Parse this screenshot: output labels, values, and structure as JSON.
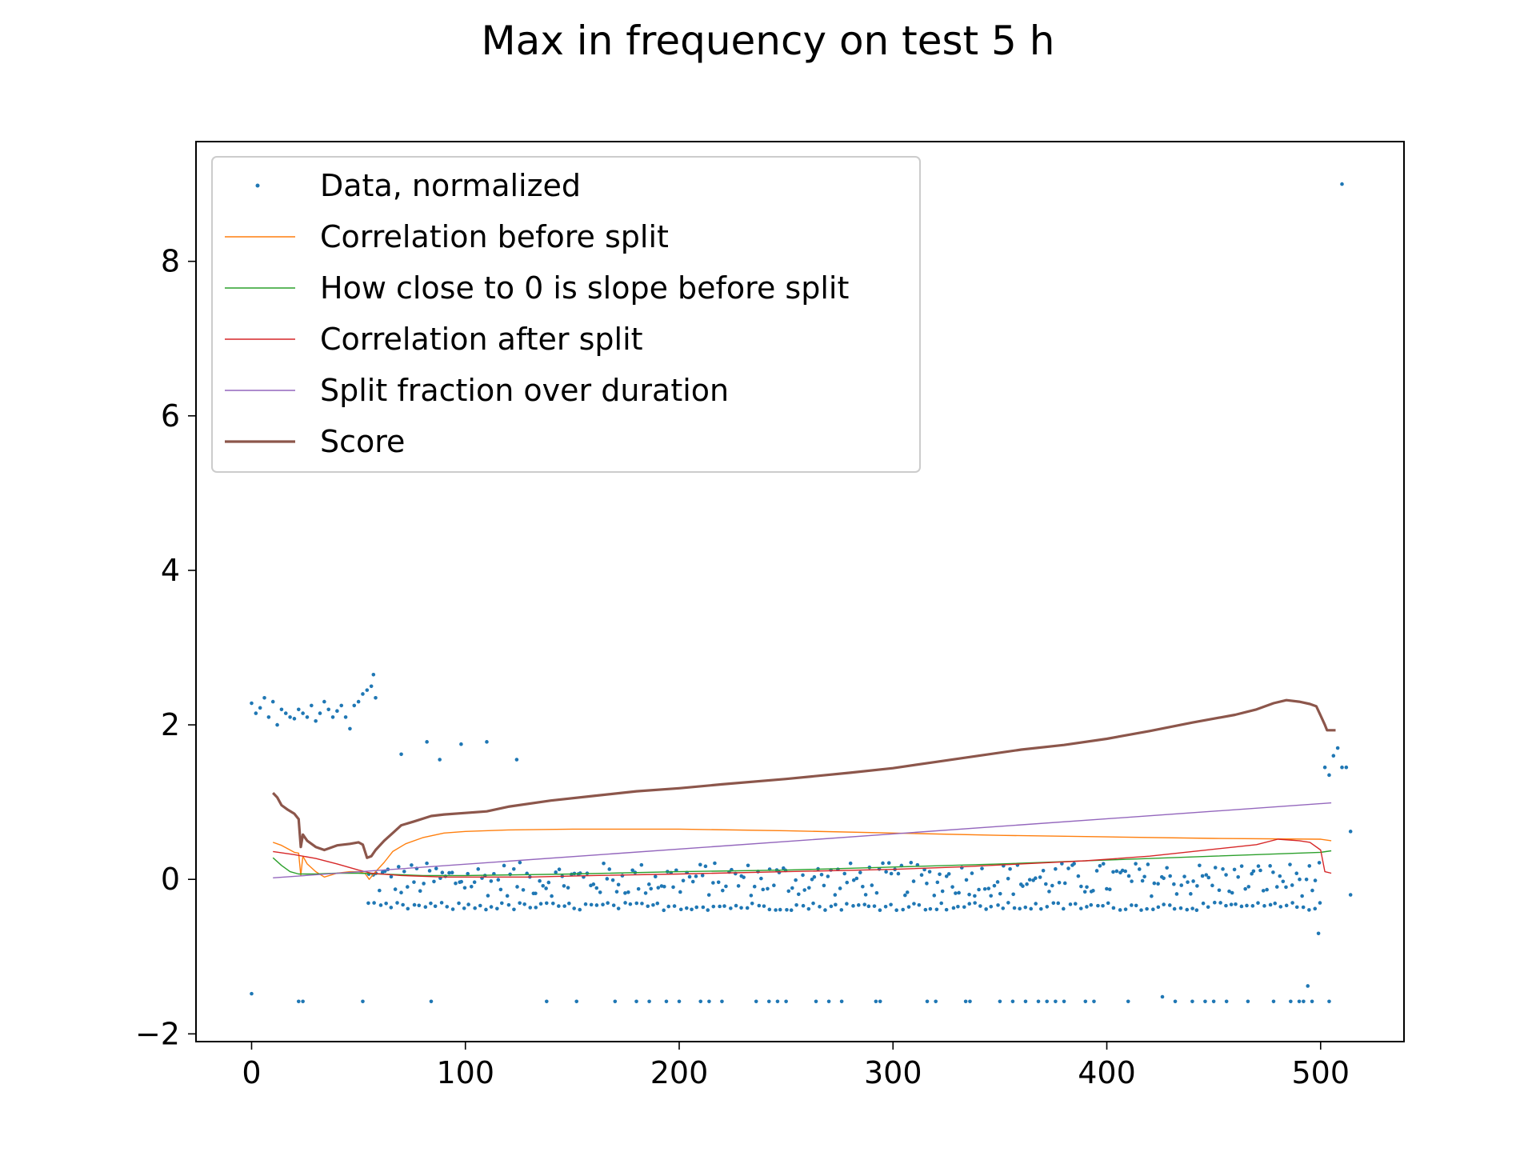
{
  "chart_data": {
    "type": "scatter",
    "title": "Max in frequency on test 5 h",
    "xlabel": "",
    "ylabel": "",
    "xlim": [
      -26,
      539
    ],
    "ylim": [
      -2.1,
      9.55
    ],
    "xticks": [
      0,
      100,
      200,
      300,
      400,
      500
    ],
    "yticks": [
      -2,
      0,
      2,
      4,
      6,
      8
    ],
    "ytick_labels": [
      "−2",
      "0",
      "2",
      "4",
      "6",
      "8"
    ],
    "grid": false,
    "legend": {
      "placement": "top-left"
    },
    "colors": {
      "data": "#1f77b4",
      "corr_before": "#ff7f0e",
      "slope": "#2ca02c",
      "corr_after": "#d62728",
      "split": "#9467bd",
      "score": "#8c564b"
    },
    "series": [
      {
        "name": "Data, normalized",
        "kind": "points",
        "color": "#1f77b4",
        "clusters": {
          "early_high": [
            [
              0,
              2.28
            ],
            [
              2,
              2.15
            ],
            [
              4,
              2.22
            ],
            [
              6,
              2.35
            ],
            [
              8,
              2.1
            ],
            [
              10,
              2.3
            ],
            [
              12,
              2.0
            ],
            [
              14,
              2.2
            ],
            [
              16,
              2.15
            ],
            [
              18,
              2.1
            ],
            [
              20,
              2.08
            ],
            [
              22,
              2.2
            ],
            [
              24,
              2.15
            ],
            [
              26,
              2.1
            ],
            [
              28,
              2.25
            ],
            [
              30,
              2.05
            ],
            [
              32,
              2.15
            ],
            [
              34,
              2.3
            ],
            [
              36,
              2.2
            ],
            [
              38,
              2.1
            ],
            [
              40,
              2.18
            ],
            [
              42,
              2.25
            ],
            [
              44,
              2.1
            ],
            [
              46,
              1.95
            ],
            [
              48,
              2.25
            ],
            [
              50,
              2.3
            ],
            [
              52,
              2.4
            ],
            [
              54,
              2.45
            ],
            [
              56,
              2.5
            ],
            [
              57,
              2.65
            ],
            [
              58,
              2.35
            ]
          ],
          "outliers_low": [
            [
              0,
              -1.48
            ],
            [
              22,
              -1.58
            ],
            [
              24,
              -1.58
            ],
            [
              52,
              -1.58
            ],
            [
              84,
              -1.58
            ],
            [
              138,
              -1.58
            ],
            [
              152,
              -1.58
            ],
            [
              170,
              -1.58
            ],
            [
              180,
              -1.58
            ],
            [
              186,
              -1.58
            ],
            [
              194,
              -1.58
            ],
            [
              200,
              -1.58
            ],
            [
              210,
              -1.58
            ],
            [
              214,
              -1.58
            ],
            [
              220,
              -1.58
            ],
            [
              236,
              -1.58
            ],
            [
              242,
              -1.58
            ],
            [
              246,
              -1.58
            ],
            [
              250,
              -1.58
            ],
            [
              264,
              -1.58
            ],
            [
              270,
              -1.58
            ],
            [
              276,
              -1.58
            ],
            [
              292,
              -1.58
            ],
            [
              294,
              -1.58
            ],
            [
              316,
              -1.58
            ],
            [
              320,
              -1.58
            ],
            [
              334,
              -1.58
            ],
            [
              336,
              -1.58
            ],
            [
              350,
              -1.58
            ],
            [
              356,
              -1.58
            ],
            [
              362,
              -1.58
            ],
            [
              368,
              -1.58
            ],
            [
              372,
              -1.58
            ],
            [
              376,
              -1.58
            ],
            [
              380,
              -1.58
            ],
            [
              390,
              -1.58
            ],
            [
              394,
              -1.58
            ],
            [
              410,
              -1.58
            ],
            [
              426,
              -1.52
            ],
            [
              432,
              -1.58
            ],
            [
              440,
              -1.58
            ],
            [
              446,
              -1.58
            ],
            [
              450,
              -1.58
            ],
            [
              456,
              -1.58
            ],
            [
              466,
              -1.58
            ],
            [
              478,
              -1.58
            ],
            [
              486,
              -1.58
            ],
            [
              490,
              -1.58
            ],
            [
              492,
              -1.58
            ],
            [
              494,
              -1.38
            ],
            [
              496,
              -1.58
            ],
            [
              504,
              -1.58
            ]
          ],
          "outliers_mid": [
            [
              70,
              1.62
            ],
            [
              82,
              1.78
            ],
            [
              88,
              1.55
            ],
            [
              98,
              1.75
            ],
            [
              110,
              1.78
            ],
            [
              124,
              1.55
            ]
          ],
          "end_cluster": [
            [
              499,
              -0.7
            ],
            [
              502,
              1.45
            ],
            [
              504,
              1.35
            ],
            [
              506,
              1.6
            ],
            [
              508,
              1.7
            ],
            [
              510,
              1.45
            ],
            [
              512,
              1.45
            ],
            [
              514,
              0.62
            ],
            [
              514,
              -0.2
            ],
            [
              510,
              9.0
            ]
          ]
        },
        "band_upper": {
          "x_from": 55,
          "x_to": 500,
          "step": 1.5,
          "y_center": 0.0,
          "y_spread": 0.22
        },
        "band_lower": {
          "x_from": 55,
          "x_to": 500,
          "step": 2.6,
          "y_center": -0.35,
          "y_spread": 0.05
        }
      },
      {
        "name": "Correlation before split",
        "kind": "line",
        "color": "#ff7f0e",
        "points": [
          [
            10,
            0.48
          ],
          [
            14,
            0.44
          ],
          [
            18,
            0.38
          ],
          [
            20,
            0.35
          ],
          [
            22,
            0.34
          ],
          [
            23,
            0.05
          ],
          [
            24,
            0.3
          ],
          [
            26,
            0.2
          ],
          [
            30,
            0.1
          ],
          [
            34,
            0.03
          ],
          [
            40,
            0.08
          ],
          [
            46,
            0.1
          ],
          [
            50,
            0.1
          ],
          [
            53,
            0.08
          ],
          [
            55,
            0.0
          ],
          [
            58,
            0.1
          ],
          [
            62,
            0.22
          ],
          [
            66,
            0.36
          ],
          [
            72,
            0.46
          ],
          [
            80,
            0.54
          ],
          [
            90,
            0.6
          ],
          [
            100,
            0.62
          ],
          [
            120,
            0.64
          ],
          [
            150,
            0.65
          ],
          [
            200,
            0.65
          ],
          [
            250,
            0.63
          ],
          [
            300,
            0.6
          ],
          [
            350,
            0.57
          ],
          [
            400,
            0.55
          ],
          [
            450,
            0.53
          ],
          [
            500,
            0.52
          ],
          [
            505,
            0.5
          ]
        ]
      },
      {
        "name": "How close to 0 is slope before split",
        "kind": "line",
        "color": "#2ca02c",
        "points": [
          [
            10,
            0.28
          ],
          [
            14,
            0.18
          ],
          [
            18,
            0.1
          ],
          [
            22,
            0.07
          ],
          [
            30,
            0.07
          ],
          [
            40,
            0.08
          ],
          [
            50,
            0.08
          ],
          [
            60,
            0.07
          ],
          [
            80,
            0.05
          ],
          [
            100,
            0.05
          ],
          [
            150,
            0.07
          ],
          [
            200,
            0.1
          ],
          [
            250,
            0.12
          ],
          [
            300,
            0.16
          ],
          [
            350,
            0.2
          ],
          [
            400,
            0.25
          ],
          [
            450,
            0.3
          ],
          [
            500,
            0.35
          ],
          [
            505,
            0.37
          ]
        ]
      },
      {
        "name": "Correlation after split",
        "kind": "line",
        "color": "#d62728",
        "points": [
          [
            10,
            0.36
          ],
          [
            20,
            0.32
          ],
          [
            30,
            0.27
          ],
          [
            40,
            0.2
          ],
          [
            50,
            0.12
          ],
          [
            56,
            0.08
          ],
          [
            70,
            0.05
          ],
          [
            90,
            0.03
          ],
          [
            100,
            0.03
          ],
          [
            130,
            0.03
          ],
          [
            160,
            0.05
          ],
          [
            200,
            0.07
          ],
          [
            250,
            0.1
          ],
          [
            300,
            0.13
          ],
          [
            330,
            0.16
          ],
          [
            360,
            0.2
          ],
          [
            390,
            0.24
          ],
          [
            420,
            0.3
          ],
          [
            440,
            0.36
          ],
          [
            460,
            0.42
          ],
          [
            470,
            0.45
          ],
          [
            480,
            0.52
          ],
          [
            490,
            0.5
          ],
          [
            495,
            0.48
          ],
          [
            500,
            0.38
          ],
          [
            502,
            0.1
          ],
          [
            505,
            0.08
          ]
        ]
      },
      {
        "name": "Split fraction over duration",
        "kind": "line",
        "color": "#9467bd",
        "points": [
          [
            10,
            0.02
          ],
          [
            505,
            0.99
          ]
        ]
      },
      {
        "name": "Score",
        "kind": "line",
        "color": "#8c564b",
        "points": [
          [
            10,
            1.12
          ],
          [
            12,
            1.06
          ],
          [
            14,
            0.96
          ],
          [
            17,
            0.9
          ],
          [
            20,
            0.85
          ],
          [
            22,
            0.78
          ],
          [
            23,
            0.42
          ],
          [
            24,
            0.58
          ],
          [
            26,
            0.5
          ],
          [
            30,
            0.42
          ],
          [
            34,
            0.38
          ],
          [
            40,
            0.44
          ],
          [
            46,
            0.46
          ],
          [
            50,
            0.48
          ],
          [
            52,
            0.45
          ],
          [
            54,
            0.28
          ],
          [
            56,
            0.3
          ],
          [
            58,
            0.38
          ],
          [
            62,
            0.5
          ],
          [
            66,
            0.6
          ],
          [
            70,
            0.7
          ],
          [
            76,
            0.75
          ],
          [
            84,
            0.82
          ],
          [
            90,
            0.84
          ],
          [
            100,
            0.86
          ],
          [
            110,
            0.88
          ],
          [
            120,
            0.94
          ],
          [
            140,
            1.02
          ],
          [
            160,
            1.08
          ],
          [
            180,
            1.14
          ],
          [
            200,
            1.18
          ],
          [
            220,
            1.23
          ],
          [
            250,
            1.3
          ],
          [
            280,
            1.38
          ],
          [
            300,
            1.44
          ],
          [
            320,
            1.52
          ],
          [
            340,
            1.6
          ],
          [
            360,
            1.68
          ],
          [
            380,
            1.74
          ],
          [
            400,
            1.82
          ],
          [
            420,
            1.92
          ],
          [
            440,
            2.03
          ],
          [
            460,
            2.13
          ],
          [
            470,
            2.2
          ],
          [
            478,
            2.28
          ],
          [
            484,
            2.32
          ],
          [
            490,
            2.3
          ],
          [
            495,
            2.27
          ],
          [
            498,
            2.24
          ],
          [
            500,
            2.12
          ],
          [
            502,
            2.0
          ],
          [
            503,
            1.93
          ],
          [
            507,
            1.93
          ]
        ]
      }
    ]
  }
}
